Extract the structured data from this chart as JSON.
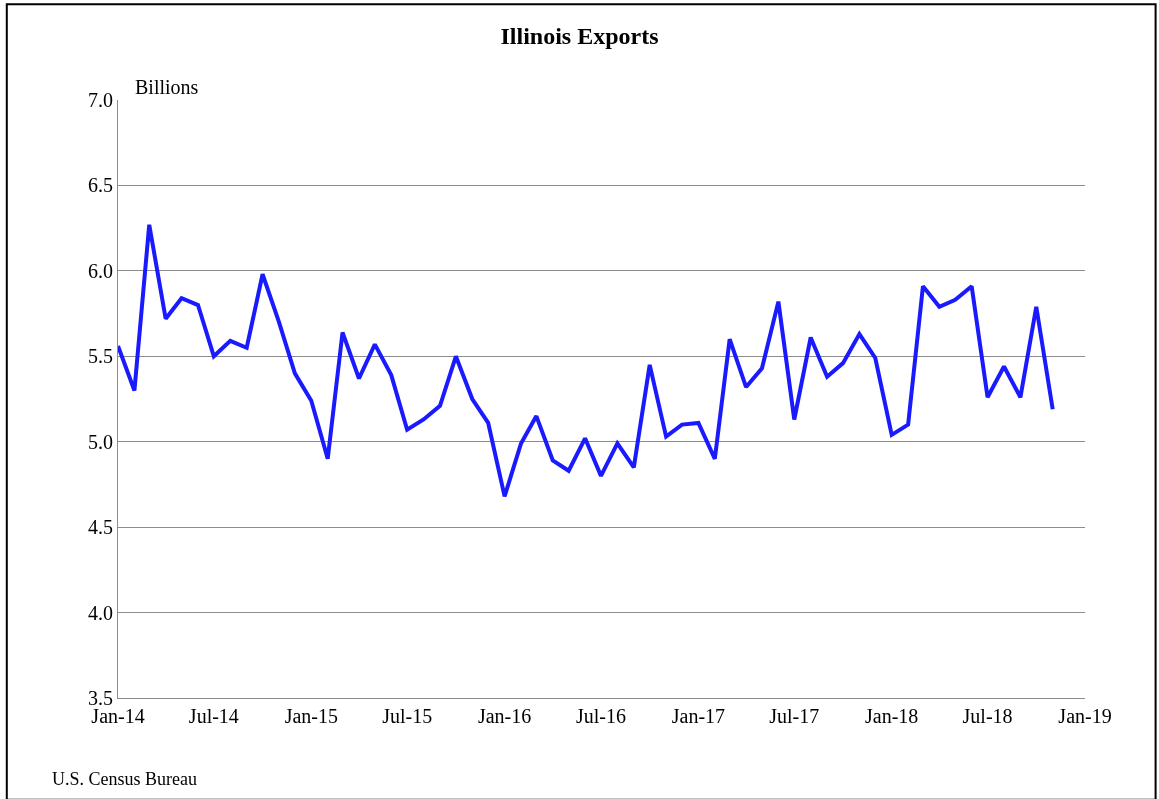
{
  "chart_data": {
    "type": "line",
    "title": "Illinois Exports",
    "ylabel": "Billions",
    "annotations": [
      "U.S. Census Bureau"
    ],
    "x": [
      "2014-01",
      "2014-02",
      "2014-03",
      "2014-04",
      "2014-05",
      "2014-06",
      "2014-07",
      "2014-08",
      "2014-09",
      "2014-10",
      "2014-11",
      "2014-12",
      "2015-01",
      "2015-02",
      "2015-03",
      "2015-04",
      "2015-05",
      "2015-06",
      "2015-07",
      "2015-08",
      "2015-09",
      "2015-10",
      "2015-11",
      "2015-12",
      "2016-01",
      "2016-02",
      "2016-03",
      "2016-04",
      "2016-05",
      "2016-06",
      "2016-07",
      "2016-08",
      "2016-09",
      "2016-10",
      "2016-11",
      "2016-12",
      "2017-01",
      "2017-02",
      "2017-03",
      "2017-04",
      "2017-05",
      "2017-06",
      "2017-07",
      "2017-08",
      "2017-09",
      "2017-10",
      "2017-11",
      "2017-12",
      "2018-01",
      "2018-02",
      "2018-03",
      "2018-04",
      "2018-05",
      "2018-06",
      "2018-07",
      "2018-08",
      "2018-09",
      "2018-10",
      "2018-11"
    ],
    "series": [
      {
        "color": "#1a1aff",
        "values": [
          5.56,
          5.3,
          6.27,
          5.72,
          5.84,
          5.8,
          5.5,
          5.59,
          5.55,
          5.98,
          5.7,
          5.4,
          5.24,
          4.9,
          5.64,
          5.37,
          5.57,
          5.39,
          5.07,
          5.13,
          5.21,
          5.5,
          5.25,
          5.11,
          4.68,
          4.99,
          5.15,
          4.89,
          4.83,
          5.02,
          4.8,
          4.99,
          4.85,
          5.45,
          5.03,
          5.1,
          5.11,
          4.9,
          5.6,
          5.32,
          5.43,
          5.82,
          5.13,
          5.61,
          5.38,
          5.46,
          5.63,
          5.49,
          5.04,
          5.1,
          5.91,
          5.79,
          5.83,
          5.91,
          5.26,
          5.44,
          5.26,
          5.79,
          5.19
        ]
      }
    ],
    "xlim": [
      "2014-01",
      "2019-01"
    ],
    "xticks": [
      {
        "value": "2014-01",
        "label": "Jan-14"
      },
      {
        "value": "2014-07",
        "label": "Jul-14"
      },
      {
        "value": "2015-01",
        "label": "Jan-15"
      },
      {
        "value": "2015-07",
        "label": "Jul-15"
      },
      {
        "value": "2016-01",
        "label": "Jan-16"
      },
      {
        "value": "2016-07",
        "label": "Jul-16"
      },
      {
        "value": "2017-01",
        "label": "Jan-17"
      },
      {
        "value": "2017-07",
        "label": "Jul-17"
      },
      {
        "value": "2018-01",
        "label": "Jan-18"
      },
      {
        "value": "2018-07",
        "label": "Jul-18"
      },
      {
        "value": "2019-01",
        "label": "Jan-19"
      }
    ],
    "ylim": [
      3.5,
      7.0
    ],
    "yticks": [
      {
        "value": 3.5,
        "label": "3.5"
      },
      {
        "value": 4,
        "label": "4.0"
      },
      {
        "value": 4.5,
        "label": "4.5"
      },
      {
        "value": 5,
        "label": "5.0"
      },
      {
        "value": 5.5,
        "label": "5.5"
      },
      {
        "value": 6,
        "label": "6.0"
      },
      {
        "value": 6.5,
        "label": "6.5"
      },
      {
        "value": 7,
        "label": "7.0"
      }
    ],
    "grid": "y",
    "marker": "none",
    "line_style": "solid"
  }
}
